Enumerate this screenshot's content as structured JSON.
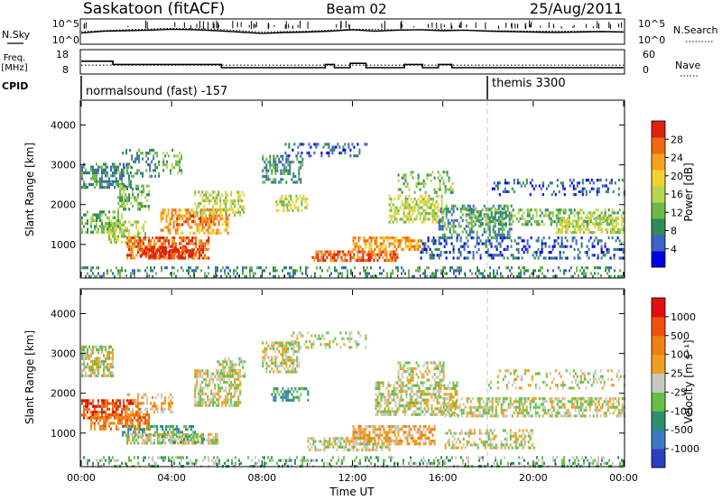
{
  "header": {
    "station": "Saskatoon (fitACF)",
    "beam": "Beam 02",
    "date": "25/Aug/2011"
  },
  "strip_labels": {
    "nsky": "N.Sky",
    "nsky_ticks": [
      "10^5",
      "10^0"
    ],
    "nsearch": "N.Search",
    "nsearch_ticks": [
      "10^5",
      "10^0"
    ],
    "freq_line1": "Freq.",
    "freq_line2": "[MHz]",
    "freq_ticks": [
      "18",
      "8"
    ],
    "nave": "Nave",
    "nave_ticks": [
      "60",
      "0"
    ],
    "cpid": "CPID"
  },
  "cpid_segments": [
    {
      "label": "normalsound (fast) -157",
      "start_hour": 0
    },
    {
      "label": "themis 3300",
      "start_hour": 18
    }
  ],
  "colorbars": {
    "power": {
      "title": "Power [dB]",
      "ticks": [
        "28",
        "24",
        "20",
        "16",
        "12",
        "8",
        "4"
      ],
      "colors": [
        "#0000e6",
        "#3c64c8",
        "#2e8b57",
        "#6fb84a",
        "#b8d54d",
        "#f2d230",
        "#f5a020",
        "#f06a10",
        "#e02010"
      ]
    },
    "velocity": {
      "title": "Velocity [m s⁻¹]",
      "ticks": [
        "1000",
        "500",
        "100",
        "25",
        "-25",
        "-100",
        "-500",
        "-1000"
      ],
      "colors": [
        "#2c3ec0",
        "#3c7abf",
        "#2d8f6f",
        "#64c046",
        "#c8c8c0",
        "#f0a020",
        "#f08010",
        "#f05010",
        "#e01010"
      ]
    }
  },
  "chart_data": [
    {
      "type": "line",
      "title": "N.Sky / N.Search",
      "x_unit": "hours UT",
      "series": [
        {
          "name": "N.Sky",
          "x": [
            0,
            1,
            2,
            3,
            4,
            5,
            6,
            7,
            8,
            9,
            10,
            11,
            12,
            13,
            14,
            15,
            16,
            17,
            18,
            19,
            20,
            21,
            22,
            23,
            24
          ],
          "log_values": [
            2.2,
            2.6,
            2.7,
            2.8,
            3.0,
            2.9,
            2.7,
            2.4,
            2.1,
            2.3,
            2.4,
            2.6,
            2.9,
            2.6,
            2.8,
            2.9,
            2.7,
            2.8,
            2.6,
            2.5,
            2.4,
            2.3,
            2.4,
            2.5,
            2.4
          ]
        },
        {
          "name": "N.Search",
          "x": [
            0,
            2,
            4,
            6,
            8,
            10,
            12,
            14,
            16,
            18,
            20,
            22,
            24
          ],
          "log_values": [
            2.5,
            2.9,
            3.2,
            3.0,
            2.4,
            2.6,
            3.0,
            2.9,
            2.9,
            2.7,
            2.6,
            2.6,
            2.5
          ]
        }
      ]
    },
    {
      "type": "line",
      "title": "Freq. [MHz] / Nave",
      "x_unit": "hours UT",
      "series": [
        {
          "name": "Freq.",
          "step_points": [
            [
              0,
              13.5
            ],
            [
              1.4,
              13.5
            ],
            [
              1.4,
              12.0
            ],
            [
              6.2,
              12.0
            ],
            [
              6.2,
              10.5
            ],
            [
              10.8,
              10.5
            ],
            [
              10.8,
              12.0
            ],
            [
              11.2,
              12.0
            ],
            [
              11.2,
              10.5
            ],
            [
              11.9,
              10.5
            ],
            [
              11.9,
              12.5
            ],
            [
              12.6,
              12.5
            ],
            [
              12.6,
              10.5
            ],
            [
              14.3,
              10.5
            ],
            [
              14.3,
              12.0
            ],
            [
              15.1,
              12.0
            ],
            [
              15.1,
              10.5
            ],
            [
              15.8,
              10.5
            ],
            [
              15.8,
              12.0
            ],
            [
              16.4,
              12.0
            ],
            [
              16.4,
              10.5
            ],
            [
              24,
              10.5
            ]
          ]
        },
        {
          "name": "Nave",
          "x": [
            0,
            24
          ],
          "values": [
            22,
            22
          ]
        }
      ]
    },
    {
      "type": "heatmap",
      "title": "Power [dB]",
      "xlabel": "",
      "ylabel": "Slant Range [km]",
      "xlim": [
        0,
        24
      ],
      "ylim": [
        180,
        4600
      ],
      "x_ticks": [
        0,
        4,
        8,
        12,
        16,
        20,
        24
      ],
      "y_ticks": [
        1000,
        2000,
        3000,
        4000
      ],
      "blobs": [
        {
          "t0": 0.0,
          "t1": 1.8,
          "r0": 1300,
          "r1": 1850,
          "level": 3,
          "density": 0.55
        },
        {
          "t0": 0.0,
          "t1": 2.2,
          "r0": 2450,
          "r1": 3050,
          "level": 2,
          "density": 0.55
        },
        {
          "t0": 1.8,
          "t1": 3.4,
          "r0": 2700,
          "r1": 3400,
          "level": 2,
          "density": 0.3
        },
        {
          "t0": 1.2,
          "t1": 2.8,
          "r0": 1050,
          "r1": 1600,
          "level": 4,
          "density": 0.5
        },
        {
          "t0": 1.6,
          "t1": 3.0,
          "r0": 1850,
          "r1": 2500,
          "level": 3,
          "density": 0.45
        },
        {
          "t0": 2.0,
          "t1": 5.6,
          "r0": 650,
          "r1": 1200,
          "level": 7,
          "density": 0.7
        },
        {
          "t0": 2.6,
          "t1": 5.0,
          "r0": 680,
          "r1": 950,
          "level": 8,
          "density": 0.6
        },
        {
          "t0": 3.5,
          "t1": 6.5,
          "r0": 1250,
          "r1": 1900,
          "level": 6,
          "density": 0.55
        },
        {
          "t0": 4.2,
          "t1": 6.0,
          "r0": 1500,
          "r1": 1750,
          "level": 7,
          "density": 0.4
        },
        {
          "t0": 5.0,
          "t1": 7.2,
          "r0": 1750,
          "r1": 2350,
          "level": 4,
          "density": 0.5
        },
        {
          "t0": 3.6,
          "t1": 4.4,
          "r0": 2800,
          "r1": 3400,
          "level": 3,
          "density": 0.35
        },
        {
          "t0": 8.0,
          "t1": 9.8,
          "r0": 2550,
          "r1": 3250,
          "level": 2,
          "density": 0.45
        },
        {
          "t0": 8.6,
          "t1": 10.0,
          "r0": 1850,
          "r1": 2250,
          "level": 4,
          "density": 0.45
        },
        {
          "t0": 9.0,
          "t1": 12.6,
          "r0": 3200,
          "r1": 3550,
          "level": 1,
          "density": 0.25
        },
        {
          "t0": 10.2,
          "t1": 14.0,
          "r0": 600,
          "r1": 850,
          "level": 7,
          "density": 0.7
        },
        {
          "t0": 12.0,
          "t1": 15.2,
          "r0": 850,
          "r1": 1200,
          "level": 6,
          "density": 0.6
        },
        {
          "t0": 13.6,
          "t1": 16.0,
          "r0": 1550,
          "r1": 2250,
          "level": 4,
          "density": 0.5
        },
        {
          "t0": 14.0,
          "t1": 16.4,
          "r0": 2300,
          "r1": 2850,
          "level": 3,
          "density": 0.3
        },
        {
          "t0": 15.8,
          "t1": 19.0,
          "r0": 1200,
          "r1": 2000,
          "level": 2,
          "density": 0.4
        },
        {
          "t0": 17.0,
          "t1": 24.0,
          "r0": 1500,
          "r1": 1900,
          "level": 3,
          "density": 0.45
        },
        {
          "t0": 18.0,
          "t1": 24.0,
          "r0": 2250,
          "r1": 2650,
          "level": 1,
          "density": 0.25
        },
        {
          "t0": 21.0,
          "t1": 24.0,
          "r0": 1300,
          "r1": 1700,
          "level": 4,
          "density": 0.55
        },
        {
          "t0": 15.0,
          "t1": 24.0,
          "r0": 650,
          "r1": 1200,
          "level": 1,
          "density": 0.3
        },
        {
          "t0": 0.0,
          "t1": 24.0,
          "r0": 180,
          "r1": 450,
          "level": 2,
          "density": 0.3
        }
      ]
    },
    {
      "type": "heatmap",
      "title": "Velocity [m s⁻¹]",
      "xlabel": "Time UT",
      "ylabel": "Slant Range [km]",
      "xlim": [
        0,
        24
      ],
      "ylim": [
        180,
        4600
      ],
      "x_ticks": [
        0,
        4,
        8,
        12,
        16,
        20,
        24
      ],
      "x_tick_labels": [
        "00:00",
        "04:00",
        "08:00",
        "12:00",
        "16:00",
        "20:00",
        "00:00"
      ],
      "y_ticks": [
        1000,
        2000,
        3000,
        4000
      ],
      "blobs": [
        {
          "t0": 0.0,
          "t1": 1.4,
          "r0": 2450,
          "r1": 3200,
          "level": 4,
          "density": 0.7
        },
        {
          "t0": 0.0,
          "t1": 2.6,
          "r0": 1350,
          "r1": 1850,
          "level": 7,
          "density": 0.65
        },
        {
          "t0": 0.4,
          "t1": 3.0,
          "r0": 1100,
          "r1": 1500,
          "level": 6,
          "density": 0.55
        },
        {
          "t0": 2.0,
          "t1": 4.0,
          "r0": 1500,
          "r1": 2000,
          "level": 5,
          "density": 0.45
        },
        {
          "t0": 1.8,
          "t1": 5.0,
          "r0": 950,
          "r1": 1200,
          "level": 2,
          "density": 0.5
        },
        {
          "t0": 2.0,
          "t1": 6.0,
          "r0": 750,
          "r1": 1000,
          "level": 4,
          "density": 0.7
        },
        {
          "t0": 3.4,
          "t1": 5.4,
          "r0": 750,
          "r1": 950,
          "level": 3,
          "density": 0.5
        },
        {
          "t0": 5.0,
          "t1": 7.0,
          "r0": 1700,
          "r1": 2600,
          "level": 4,
          "density": 0.6
        },
        {
          "t0": 6.0,
          "t1": 7.2,
          "r0": 2400,
          "r1": 2900,
          "level": 4,
          "density": 0.5
        },
        {
          "t0": 8.0,
          "t1": 9.6,
          "r0": 2550,
          "r1": 3300,
          "level": 4,
          "density": 0.55
        },
        {
          "t0": 8.4,
          "t1": 10.0,
          "r0": 1800,
          "r1": 2150,
          "level": 2,
          "density": 0.5
        },
        {
          "t0": 9.2,
          "t1": 12.6,
          "r0": 3150,
          "r1": 3550,
          "level": 4,
          "density": 0.3
        },
        {
          "t0": 10.0,
          "t1": 13.6,
          "r0": 550,
          "r1": 900,
          "level": 4,
          "density": 0.6
        },
        {
          "t0": 12.0,
          "t1": 15.6,
          "r0": 700,
          "r1": 1200,
          "level": 5,
          "density": 0.65
        },
        {
          "t0": 13.0,
          "t1": 16.6,
          "r0": 1500,
          "r1": 2300,
          "level": 4,
          "density": 0.55
        },
        {
          "t0": 14.0,
          "t1": 16.0,
          "r0": 2300,
          "r1": 2800,
          "level": 4,
          "density": 0.4
        },
        {
          "t0": 16.0,
          "t1": 24.0,
          "r0": 1450,
          "r1": 1900,
          "level": 4,
          "density": 0.55
        },
        {
          "t0": 18.0,
          "t1": 24.0,
          "r0": 2100,
          "r1": 2600,
          "level": 4,
          "density": 0.25
        },
        {
          "t0": 16.0,
          "t1": 20.0,
          "r0": 650,
          "r1": 1100,
          "level": 4,
          "density": 0.4
        },
        {
          "t0": 0.0,
          "t1": 24.0,
          "r0": 180,
          "r1": 420,
          "level": 3,
          "density": 0.3
        }
      ]
    }
  ]
}
